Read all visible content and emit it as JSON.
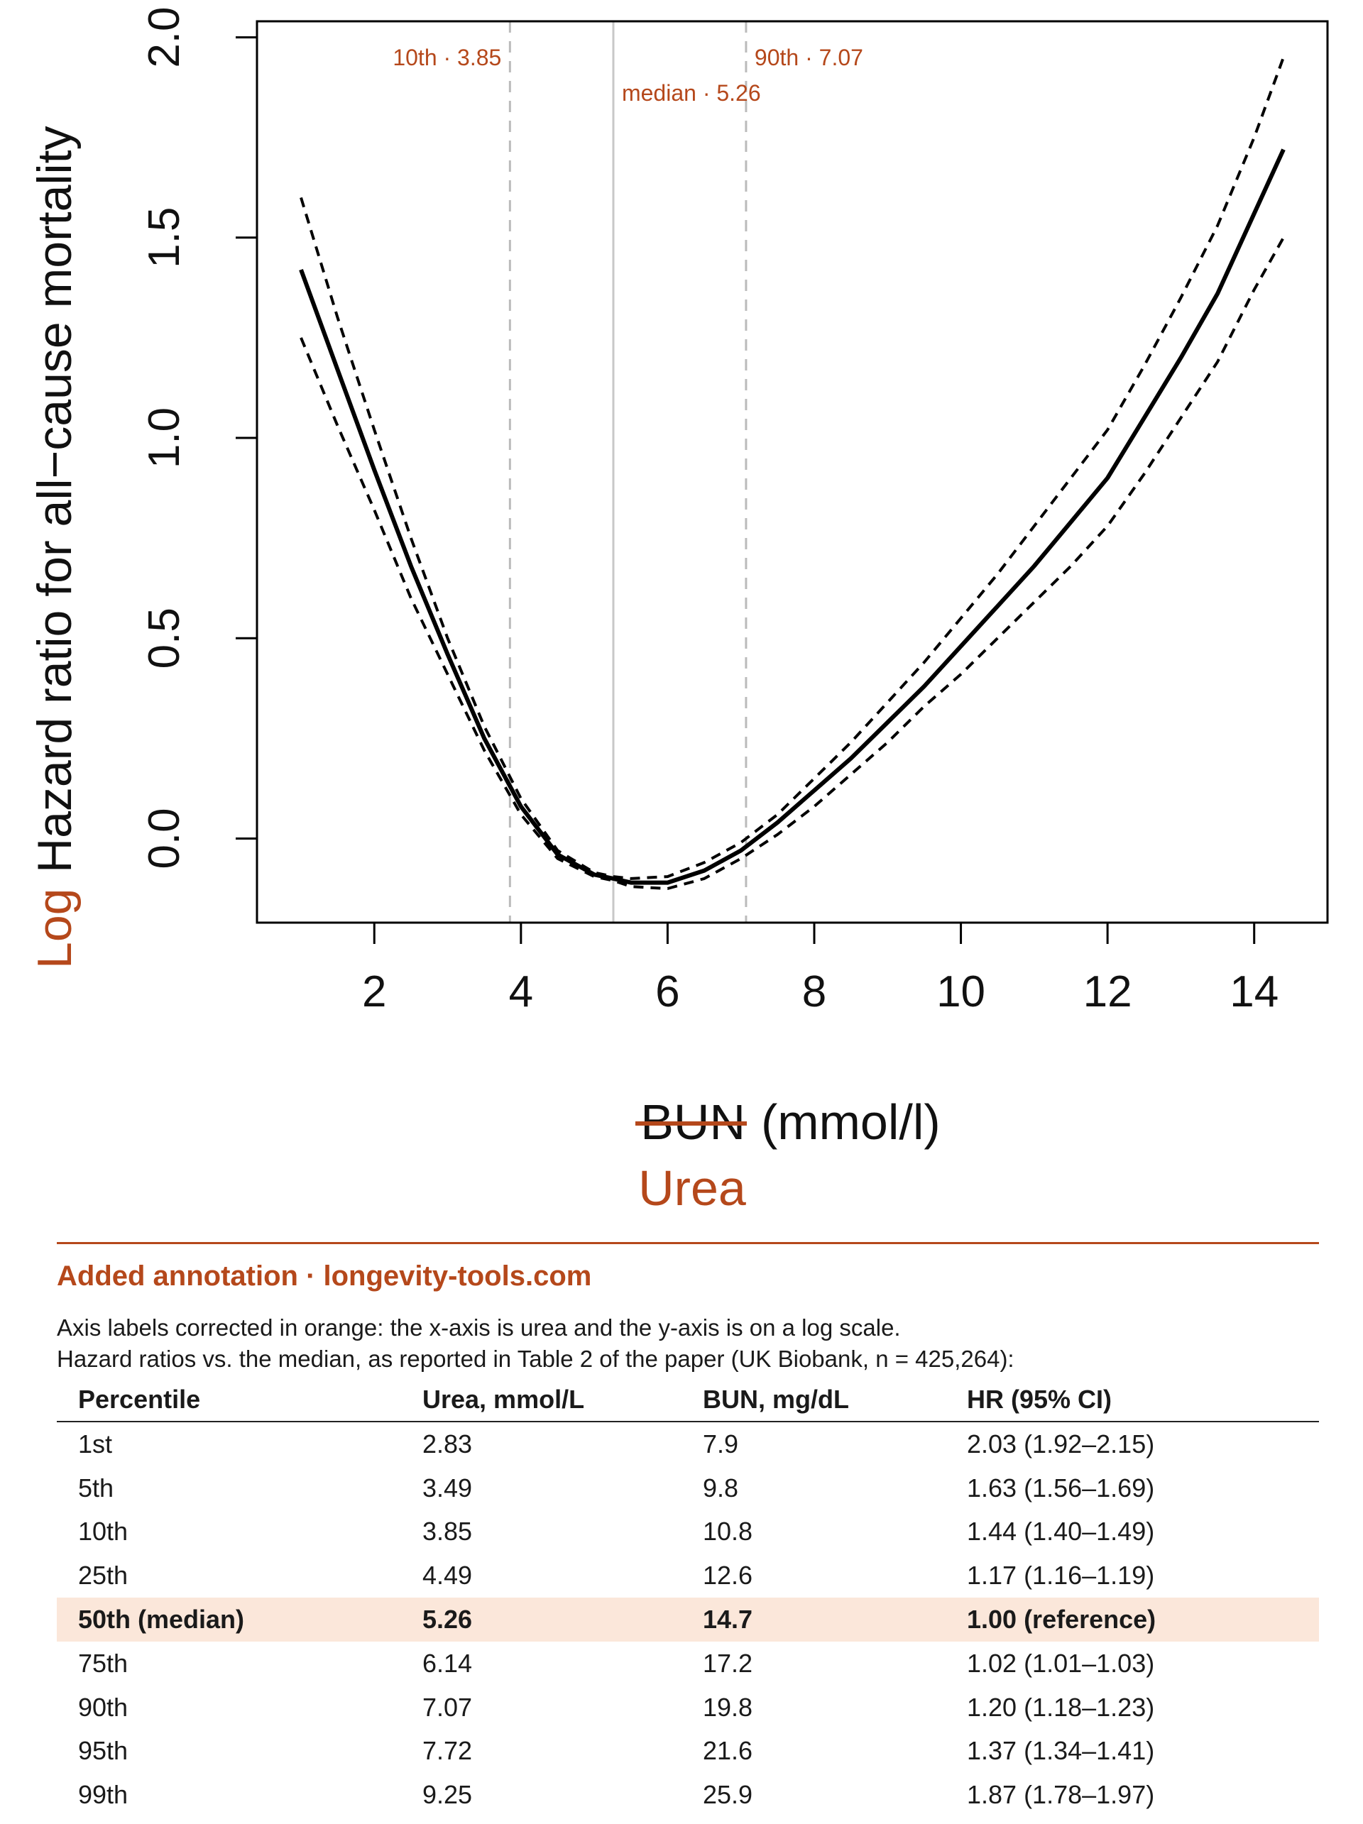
{
  "chart_data": {
    "type": "line",
    "xlabel_struck": "BUN",
    "xlabel_unit": "(mmol/l)",
    "xlabel_correction": "Urea",
    "ylabel_prefix": "Log",
    "ylabel": "Hazard ratio for all−cause mortality",
    "xlim": [
      0.4,
      15.0
    ],
    "ylim": [
      -0.21,
      2.04
    ],
    "xticks": [
      2,
      4,
      6,
      8,
      10,
      12,
      14
    ],
    "yticks": [
      0.0,
      0.5,
      1.0,
      1.5,
      2.0
    ],
    "ytick_labels": [
      "0.0",
      "0.5",
      "1.0",
      "1.5",
      "2.0"
    ],
    "grid": false,
    "series": [
      {
        "style": "solid",
        "x": [
          1.0,
          1.5,
          2.0,
          2.5,
          3.0,
          3.5,
          4.0,
          4.5,
          5.0,
          5.26,
          5.5,
          6.0,
          6.5,
          7.0,
          7.5,
          8.0,
          8.5,
          9.0,
          9.5,
          10.0,
          10.5,
          11.0,
          11.5,
          12.0,
          12.5,
          13.0,
          13.5,
          14.0,
          14.4
        ],
        "y": [
          1.42,
          1.17,
          0.92,
          0.68,
          0.46,
          0.25,
          0.08,
          -0.04,
          -0.09,
          -0.1,
          -0.11,
          -0.11,
          -0.08,
          -0.03,
          0.04,
          0.12,
          0.2,
          0.29,
          0.38,
          0.48,
          0.58,
          0.68,
          0.79,
          0.9,
          1.05,
          1.2,
          1.36,
          1.56,
          1.72
        ]
      },
      {
        "style": "dashed",
        "x": [
          1.0,
          1.5,
          2.0,
          2.5,
          3.0,
          3.5,
          4.0,
          4.5,
          5.0,
          5.26,
          5.5,
          6.0,
          6.5,
          7.0,
          7.5,
          8.0,
          8.5,
          9.0,
          9.5,
          10.0,
          10.5,
          11.0,
          11.5,
          12.0,
          12.5,
          13.0,
          13.5,
          14.0,
          14.4
        ],
        "y": [
          1.6,
          1.3,
          1.02,
          0.75,
          0.5,
          0.28,
          0.1,
          -0.03,
          -0.085,
          -0.095,
          -0.1,
          -0.095,
          -0.06,
          -0.01,
          0.06,
          0.15,
          0.24,
          0.34,
          0.44,
          0.55,
          0.66,
          0.78,
          0.9,
          1.02,
          1.18,
          1.35,
          1.53,
          1.75,
          1.95
        ]
      },
      {
        "style": "dashed",
        "x": [
          1.0,
          1.5,
          2.0,
          2.5,
          3.0,
          3.5,
          4.0,
          4.5,
          5.0,
          5.26,
          5.5,
          6.0,
          6.5,
          7.0,
          7.5,
          8.0,
          8.5,
          9.0,
          9.5,
          10.0,
          10.5,
          11.0,
          11.5,
          12.0,
          12.5,
          13.0,
          13.5,
          14.0,
          14.4
        ],
        "y": [
          1.25,
          1.03,
          0.82,
          0.6,
          0.41,
          0.22,
          0.06,
          -0.05,
          -0.095,
          -0.105,
          -0.12,
          -0.125,
          -0.1,
          -0.05,
          0.01,
          0.08,
          0.16,
          0.24,
          0.33,
          0.41,
          0.5,
          0.59,
          0.68,
          0.78,
          0.91,
          1.05,
          1.19,
          1.37,
          1.5
        ]
      }
    ],
    "annotations": [
      {
        "label": "10th · 3.85",
        "x": 3.85,
        "style": "dashed"
      },
      {
        "label": "median · 5.26",
        "x": 5.26,
        "style": "solid"
      },
      {
        "label": "90th · 7.07",
        "x": 7.07,
        "style": "dashed"
      }
    ]
  },
  "annotation": {
    "heading": "Added annotation · longevity-tools.com",
    "line1": "Axis labels corrected in orange: the x-axis is urea and the y-axis is on a log scale.",
    "line2": "Hazard ratios vs. the median, as reported in Table 2 of the paper (UK Biobank, n = 425,264):"
  },
  "table": {
    "headers": [
      "Percentile",
      "Urea, mmol/L",
      "BUN, mg/dL",
      "HR (95% CI)"
    ],
    "rows": [
      [
        "1st",
        "2.83",
        "7.9",
        "2.03 (1.92–2.15)"
      ],
      [
        "5th",
        "3.49",
        "9.8",
        "1.63 (1.56–1.69)"
      ],
      [
        "10th",
        "3.85",
        "10.8",
        "1.44 (1.40–1.49)"
      ],
      [
        "25th",
        "4.49",
        "12.6",
        "1.17 (1.16–1.19)"
      ],
      [
        "50th (median)",
        "5.26",
        "14.7",
        "1.00 (reference)"
      ],
      [
        "75th",
        "6.14",
        "17.2",
        "1.02 (1.01–1.03)"
      ],
      [
        "90th",
        "7.07",
        "19.8",
        "1.20 (1.18–1.23)"
      ],
      [
        "95th",
        "7.72",
        "21.6",
        "1.37 (1.34–1.41)"
      ],
      [
        "99th",
        "9.25",
        "25.9",
        "1.87 (1.78–1.97)"
      ]
    ],
    "highlight_row": 4
  },
  "colors": {
    "accent": "#b5481b",
    "highlight": "#fbe7da",
    "line": "#000000",
    "ref_dashed": "#bbbbbb",
    "ref_solid": "#c8c8c8"
  }
}
